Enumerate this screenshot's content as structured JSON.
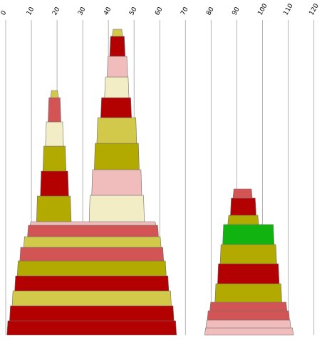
{
  "chart_data": {
    "type": "bar",
    "orientation": "stacked-tapered-columns",
    "title": "",
    "xlabel": "",
    "ylabel": "",
    "x_axis": {
      "position": "top",
      "ticks": [
        0,
        10,
        20,
        30,
        40,
        50,
        60,
        70,
        80,
        90,
        100,
        110,
        120
      ],
      "range": [
        0,
        120
      ]
    },
    "grid": true,
    "groups": [
      {
        "name": "",
        "segments": [
          {
            "x0": 0.5,
            "x1": 66.5,
            "color": "#b30000"
          },
          {
            "x0": 1.5,
            "x1": 65.5,
            "color": "#b30000"
          },
          {
            "x0": 2.5,
            "x1": 64.5,
            "color": "#d2c94a"
          },
          {
            "x0": 3.5,
            "x1": 63.5,
            "color": "#b30000"
          },
          {
            "x0": 4.5,
            "x1": 62.5,
            "color": "#b3aa00"
          },
          {
            "x0": 5.5,
            "x1": 61.5,
            "color": "#d35454"
          },
          {
            "x0": 7.0,
            "x1": 60.5,
            "color": "#d2c94a"
          },
          {
            "x0": 8.5,
            "x1": 59.5,
            "color": "#d35454"
          },
          {
            "x0": 9.5,
            "x1": 58.5,
            "color": "#f0bcbc"
          }
        ]
      },
      {
        "name": "",
        "segments": [
          {
            "x0": 12.0,
            "x1": 25.5,
            "color": "#b3aa00"
          },
          {
            "x0": 13.5,
            "x1": 24.5,
            "color": "#b30000"
          },
          {
            "x0": 14.5,
            "x1": 23.5,
            "color": "#b3aa00"
          },
          {
            "x0": 15.5,
            "x1": 22.5,
            "color": "#f2edc4"
          },
          {
            "x0": 16.5,
            "x1": 21.5,
            "color": "#d35454"
          },
          {
            "x0": 17.5,
            "x1": 20.5,
            "color": "#d2c94a"
          }
        ]
      },
      {
        "name": "",
        "segments": [
          {
            "x0": 32.5,
            "x1": 54.0,
            "color": "#f2edc4"
          },
          {
            "x0": 33.5,
            "x1": 53.0,
            "color": "#f0bcbc"
          },
          {
            "x0": 34.5,
            "x1": 52.0,
            "color": "#b3aa00"
          },
          {
            "x0": 35.5,
            "x1": 51.0,
            "color": "#d2c94a"
          },
          {
            "x0": 37.0,
            "x1": 49.0,
            "color": "#b30000"
          },
          {
            "x0": 38.5,
            "x1": 48.0,
            "color": "#f2edc4"
          },
          {
            "x0": 39.5,
            "x1": 47.5,
            "color": "#f0bcbc"
          },
          {
            "x0": 40.5,
            "x1": 46.5,
            "color": "#b30000"
          },
          {
            "x0": 41.5,
            "x1": 45.5,
            "color": "#d2c94a"
          }
        ]
      },
      {
        "name": "",
        "segments": [
          {
            "x0": 77.5,
            "x1": 112.0,
            "color": "#f0bcbc"
          },
          {
            "x0": 78.0,
            "x1": 111.0,
            "color": "#f0bcbc"
          },
          {
            "x0": 78.5,
            "x1": 110.5,
            "color": "#d35454"
          },
          {
            "x0": 79.5,
            "x1": 109.5,
            "color": "#d35454"
          },
          {
            "x0": 81.5,
            "x1": 107.5,
            "color": "#b3aa00"
          },
          {
            "x0": 82.5,
            "x1": 106.5,
            "color": "#b30000"
          },
          {
            "x0": 83.5,
            "x1": 105.5,
            "color": "#b3aa00"
          },
          {
            "x0": 84.5,
            "x1": 104.5,
            "color": "#10b310"
          },
          {
            "x0": 86.5,
            "x1": 98.5,
            "color": "#b3aa00"
          },
          {
            "x0": 87.5,
            "x1": 97.5,
            "color": "#b30000"
          },
          {
            "x0": 88.5,
            "x1": 96.0,
            "color": "#d35454"
          }
        ]
      }
    ]
  }
}
